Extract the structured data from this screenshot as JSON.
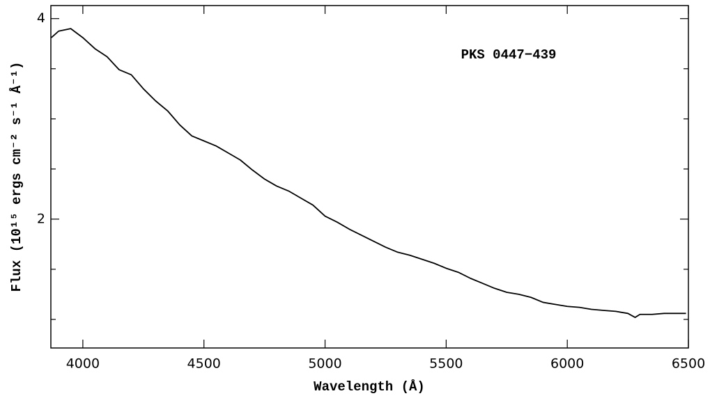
{
  "chart_data": {
    "type": "line",
    "annotation": "PKS 0447−439",
    "xlabel": "Wavelength (Å)",
    "ylabel": "Flux (10¹⁵ ergs cm⁻² s⁻¹ Å⁻¹)",
    "xlim": [
      3868,
      6500
    ],
    "ylim": [
      0.715,
      4.13
    ],
    "xticks": [
      4000,
      4500,
      5000,
      5500,
      6000,
      6500
    ],
    "yticks": [
      2,
      4
    ],
    "yminorticks": [
      1,
      1.5,
      2.5,
      3,
      3.5
    ],
    "color": "#000000",
    "x": [
      3870,
      3900,
      3950,
      4000,
      4050,
      4100,
      4150,
      4200,
      4250,
      4300,
      4350,
      4400,
      4450,
      4500,
      4550,
      4600,
      4650,
      4700,
      4750,
      4800,
      4850,
      4900,
      4950,
      5000,
      5050,
      5100,
      5150,
      5200,
      5250,
      5300,
      5350,
      5400,
      5450,
      5500,
      5550,
      5600,
      5650,
      5700,
      5750,
      5800,
      5850,
      5900,
      5950,
      6000,
      6050,
      6100,
      6150,
      6200,
      6250,
      6280,
      6300,
      6350,
      6400,
      6450,
      6490
    ],
    "values": [
      3.81,
      3.875,
      3.9,
      3.81,
      3.7,
      3.62,
      3.49,
      3.44,
      3.3,
      3.18,
      3.08,
      2.94,
      2.83,
      2.78,
      2.73,
      2.66,
      2.59,
      2.49,
      2.4,
      2.33,
      2.28,
      2.21,
      2.14,
      2.03,
      1.97,
      1.9,
      1.84,
      1.78,
      1.72,
      1.67,
      1.64,
      1.6,
      1.56,
      1.51,
      1.47,
      1.41,
      1.36,
      1.31,
      1.27,
      1.25,
      1.22,
      1.17,
      1.15,
      1.13,
      1.12,
      1.1,
      1.09,
      1.08,
      1.06,
      1.02,
      1.05,
      1.05,
      1.06,
      1.06,
      1.06
    ]
  }
}
